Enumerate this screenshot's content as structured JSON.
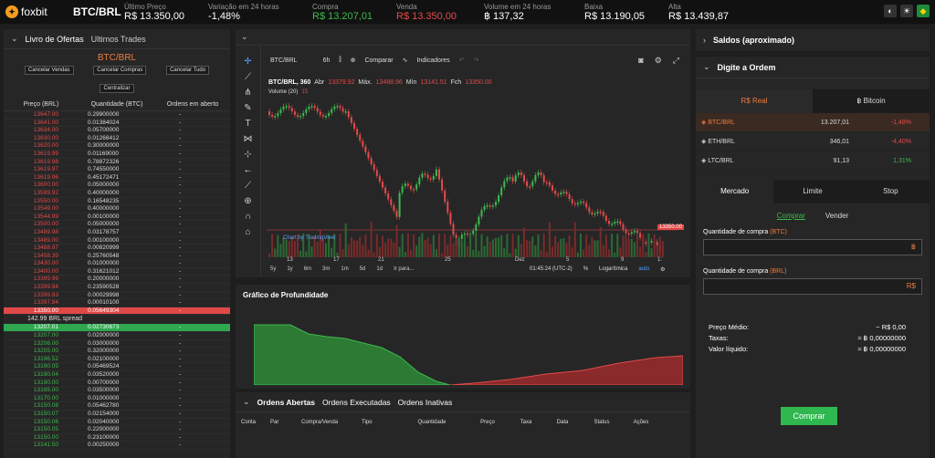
{
  "topbar": {
    "logo": "foxbit",
    "pair": "BTC/BRL",
    "stats": [
      {
        "label": "Último Preço",
        "value": "R$ 13.350,00",
        "color": "#ffffff"
      },
      {
        "label": "Variação em 24 horas",
        "value": "-1,48%",
        "color": "#ffffff"
      },
      {
        "label": "Compra",
        "value": "R$ 13.207,01",
        "color": "#3dba4e"
      },
      {
        "label": "Venda",
        "value": "R$ 13.350,00",
        "color": "#e34a4a"
      },
      {
        "label": "Volume em 24 horas",
        "value": "฿ 137,32",
        "color": "#ffffff"
      },
      {
        "label": "Baixa",
        "value": "R$ 13.190,05",
        "color": "#ffffff"
      },
      {
        "label": "Alta",
        "value": "R$ 13.439,87",
        "color": "#ffffff"
      }
    ]
  },
  "orderbook": {
    "tabs": [
      "Livro de Ofertas",
      "Ultimos Trades"
    ],
    "title": "BTC/BRL",
    "buttons": [
      "Cancelar Vendas",
      "Cancelar Compras",
      "Cancelar Tudo"
    ],
    "center_button": "Centralizar",
    "columns": [
      "Preço (BRL)",
      "Quantidade (BTC)",
      "Ordens em aberto"
    ],
    "asks": [
      [
        "13647.00",
        "0.29900000",
        "-"
      ],
      [
        "13641.00",
        "0.01384024",
        "-"
      ],
      [
        "13634.00",
        "0.05700000",
        "-"
      ],
      [
        "13630.00",
        "0.01268412",
        "-"
      ],
      [
        "13620.00",
        "0.30000000",
        "-"
      ],
      [
        "13619.99",
        "0.01169000",
        "-"
      ],
      [
        "13619.98",
        "0.78872326",
        "-"
      ],
      [
        "13619.97",
        "0.74550000",
        "-"
      ],
      [
        "13619.96",
        "0.45172471",
        "-"
      ],
      [
        "13600.00",
        "0.05000000",
        "-"
      ],
      [
        "13599.92",
        "0.40000000",
        "-"
      ],
      [
        "13550.00",
        "0.16548235",
        "-"
      ],
      [
        "13549.00",
        "0.40000000",
        "-"
      ],
      [
        "13544.99",
        "0.00100000",
        "-"
      ],
      [
        "13500.00",
        "0.05000000",
        "-"
      ],
      [
        "13489.98",
        "0.03178757",
        "-"
      ],
      [
        "13489.00",
        "0.00100000",
        "-"
      ],
      [
        "13488.97",
        "0.00820999",
        "-"
      ],
      [
        "13458.39",
        "0.25760548",
        "-"
      ],
      [
        "13430.00",
        "0.01000000",
        "-"
      ],
      [
        "13400.00",
        "0.31621012",
        "-"
      ],
      [
        "13399.99",
        "0.20000000",
        "-"
      ],
      [
        "13399.94",
        "0.23590528",
        "-"
      ],
      [
        "13399.93",
        "0.00029998",
        "-"
      ],
      [
        "13397.94",
        "0.00010100",
        "-"
      ]
    ],
    "best_ask": [
      "13350.00",
      "0.05649304",
      "-"
    ],
    "spread": "142.99 BRL spread",
    "best_bid": [
      "13207.01",
      "0.02730673",
      "-"
    ],
    "bids": [
      [
        "13207.00",
        "0.02000000",
        "-"
      ],
      [
        "13206.00",
        "0.03000000",
        "-"
      ],
      [
        "13205.00",
        "0.32000000",
        "-"
      ],
      [
        "13196.52",
        "0.02100000",
        "-"
      ],
      [
        "13190.05",
        "0.05469524",
        "-"
      ],
      [
        "13190.04",
        "0.03520000",
        "-"
      ],
      [
        "13190.00",
        "0.00700000",
        "-"
      ],
      [
        "13185.00",
        "0.03500000",
        "-"
      ],
      [
        "13170.00",
        "0.01000000",
        "-"
      ],
      [
        "13150.08",
        "0.05462780",
        "-"
      ],
      [
        "13150.07",
        "0.02154000",
        "-"
      ],
      [
        "13150.06",
        "0.02040000",
        "-"
      ],
      [
        "13150.05",
        "0.22000000",
        "-"
      ],
      [
        "13150.00",
        "0.23100000",
        "-"
      ],
      [
        "13141.50",
        "0.00250000",
        "-"
      ]
    ]
  },
  "chart": {
    "symbol": "BTC/BRL",
    "interval": "6h",
    "compare": "Comparar",
    "indicators": "Indicadores",
    "legend_symbol": "BTC/BRL, 360",
    "ohlc": {
      "abr_label": "Abr",
      "abr": "13379.92",
      "max_label": "Máx.",
      "max": "13488.96",
      "min_label": "Mín",
      "min": "13141.51",
      "fch_label": "Fch",
      "fch": "13350.00"
    },
    "volume_label": "Volume (20)",
    "volume_value": "15",
    "watermark": "Chart by TradingView",
    "price_tag": "13350.00",
    "x_labels": [
      "13",
      "17",
      "21",
      "25",
      "Dez",
      "5",
      "9",
      "1:"
    ],
    "ranges": [
      "5y",
      "1y",
      "6m",
      "3m",
      "1m",
      "5d",
      "1d",
      "Ir para..."
    ],
    "time": "01:45:24 (UTC-2)",
    "percent": "%",
    "log": "Logarítmica",
    "auto": "auto"
  },
  "depth": {
    "title": "Gráfico de Profundidade",
    "bid_color": "#2c7a34",
    "ask_color": "#8a2a2a"
  },
  "orders": {
    "tabs": [
      "Ordens Abertas",
      "Ordens Executadas",
      "Ordens Inativas"
    ],
    "columns": [
      "Conta",
      "Par",
      "Compra/Venda",
      "Tipo",
      "Quantidade",
      "Preço",
      "Taxa",
      "Data",
      "Status",
      "Ações"
    ]
  },
  "balances": {
    "title": "Saldos (aproximado)"
  },
  "order_form": {
    "title": "Digite a Ordem",
    "currency_tabs": [
      "R$ Real",
      "฿ Bitcoin"
    ],
    "markets": [
      {
        "pair": "BTC/BRL",
        "price": "13.207,01",
        "change": "-1,48%",
        "change_color": "#e34a4a"
      },
      {
        "pair": "ETH/BRL",
        "price": "346,01",
        "change": "-4,40%",
        "change_color": "#e34a4a"
      },
      {
        "pair": "LTC/BRL",
        "price": "91,13",
        "change": "1,31%",
        "change_color": "#3dba4e"
      }
    ],
    "type_tabs": [
      "Mercado",
      "Limite",
      "Stop"
    ],
    "side_tabs": [
      "Comprar",
      "Vender"
    ],
    "qty_btc_label": "Quantidade de compra",
    "qty_btc_unit": "(BTC)",
    "qty_btc_symbol": "฿",
    "qty_brl_label": "Quantidade de compra",
    "qty_brl_unit": "(BRL)",
    "qty_brl_symbol": "R$",
    "summary": [
      {
        "label": "Preço Médio:",
        "value": "~ R$ 0,00"
      },
      {
        "label": "Taxas:",
        "value": "≈ ฿ 0,00000000"
      },
      {
        "label": "Valor líquido:",
        "value": "≈ ฿ 0,00000000"
      }
    ],
    "submit": "Comprar"
  }
}
